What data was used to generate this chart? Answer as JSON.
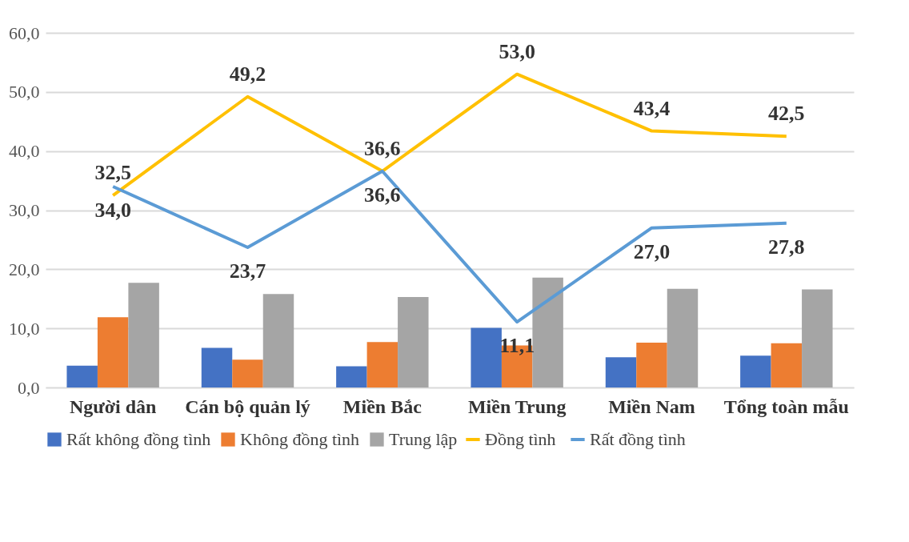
{
  "chart_data": {
    "type": "bar",
    "categories": [
      "Người dân",
      "Cán bộ quản lý",
      "Miền Bắc",
      "Miền Trung",
      "Miền Nam",
      "Tổng toàn mẫu"
    ],
    "series": [
      {
        "name": "Rất không đồng tình",
        "color": "#4472c4",
        "values": [
          3.7,
          6.7,
          3.6,
          10.1,
          5.1,
          5.4
        ]
      },
      {
        "name": "Không đồng tình",
        "color": "#ed7d31",
        "values": [
          11.9,
          4.7,
          7.7,
          7.1,
          7.6,
          7.5
        ]
      },
      {
        "name": "Trung lập",
        "color": "#a5a5a5",
        "values": [
          17.7,
          15.8,
          15.3,
          18.6,
          16.7,
          16.6
        ]
      },
      {
        "name": "Đồng tình",
        "type": "line",
        "color": "#ffc000",
        "values": [
          32.5,
          49.2,
          36.6,
          53.0,
          43.4,
          42.5
        ],
        "value_labels": [
          "32,5",
          "49,2",
          "36,6",
          "53,0",
          "43,4",
          "42,5"
        ]
      },
      {
        "name": "Rất đồng tình",
        "type": "line",
        "color": "#5b9bd5",
        "values": [
          34.0,
          23.7,
          36.6,
          11.1,
          27.0,
          27.8
        ],
        "value_labels": [
          "34,0",
          "23,7",
          "36,6",
          "11,1",
          "27,0",
          "27,8"
        ]
      }
    ],
    "ylim": [
      0,
      60
    ],
    "yticks": [
      {
        "value": 0,
        "label": "0,0"
      },
      {
        "value": 10,
        "label": "10,0"
      },
      {
        "value": 20,
        "label": "20,0"
      },
      {
        "value": 30,
        "label": "30,0"
      },
      {
        "value": 40,
        "label": "40,0"
      },
      {
        "value": 50,
        "label": "50,0"
      },
      {
        "value": 60,
        "label": "60,0"
      }
    ],
    "grid": "y",
    "legend": "bottom",
    "marker": "none",
    "line_style": "solid"
  }
}
